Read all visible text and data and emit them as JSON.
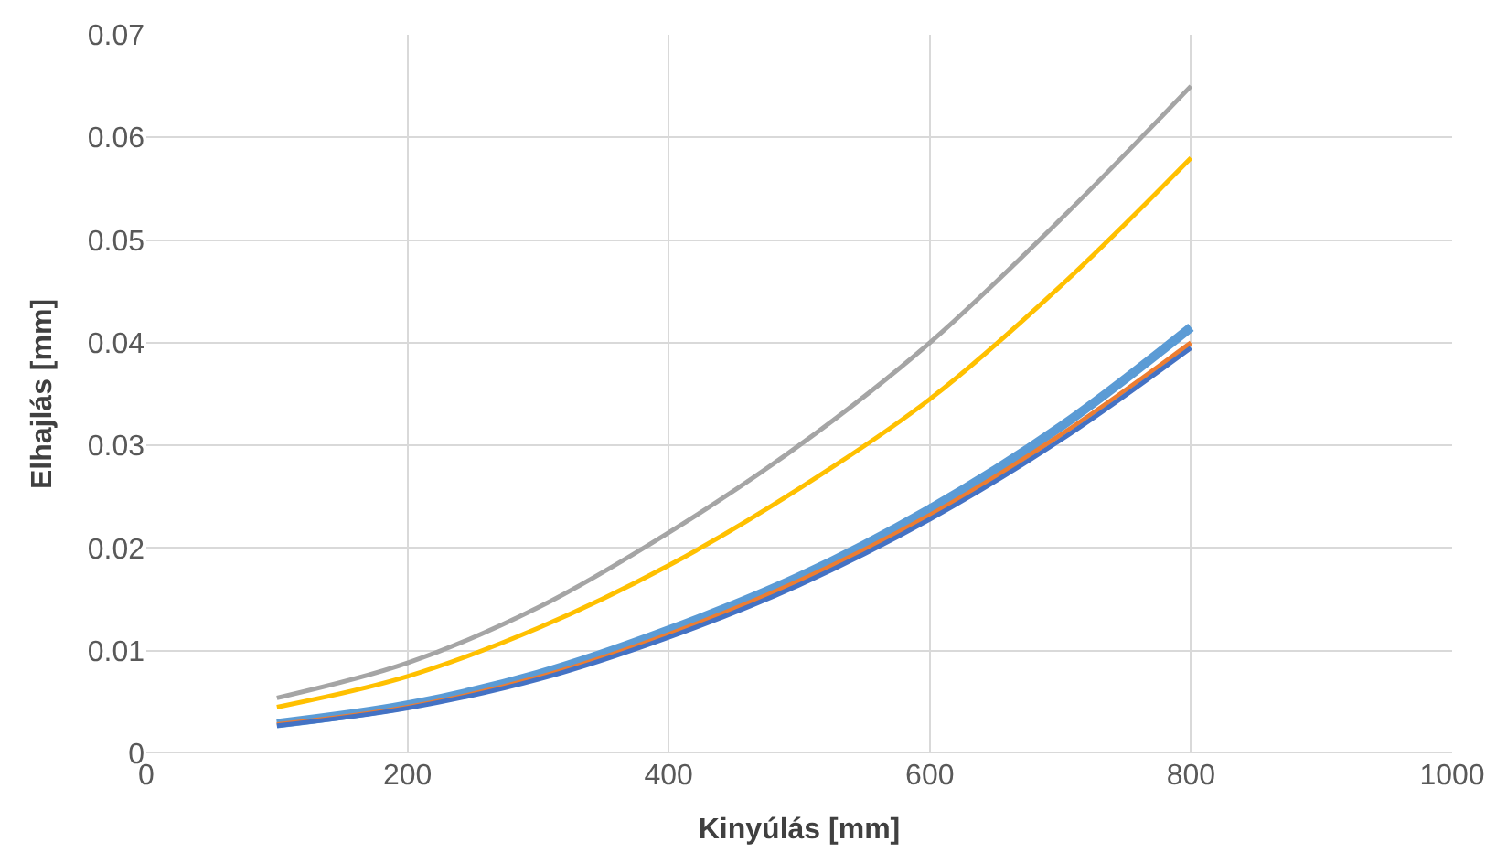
{
  "chart_data": {
    "type": "line",
    "xlabel": "Kinyúlás [mm]",
    "ylabel": "Elhajlás [mm]",
    "x": [
      100,
      200,
      300,
      400,
      500,
      600,
      700,
      800
    ],
    "series": [
      {
        "color": "#5b9bd5",
        "values": [
          0.0029,
          0.0047,
          0.0077,
          0.012,
          0.0172,
          0.0238,
          0.0318,
          0.0415
        ]
      },
      {
        "color": "#ed7d31",
        "values": [
          0.0028,
          0.0045,
          0.0074,
          0.0116,
          0.0168,
          0.0232,
          0.031,
          0.04
        ]
      },
      {
        "color": "#a5a5a5",
        "values": [
          0.0054,
          0.0088,
          0.0142,
          0.0215,
          0.03,
          0.04,
          0.052,
          0.065
        ]
      },
      {
        "color": "#ffc000",
        "values": [
          0.0045,
          0.0075,
          0.0122,
          0.0183,
          0.0258,
          0.0345,
          0.0455,
          0.058
        ]
      },
      {
        "color": "#4472c4",
        "values": [
          0.0027,
          0.0044,
          0.0072,
          0.0113,
          0.0164,
          0.0228,
          0.0305,
          0.0395
        ]
      }
    ],
    "xlim": [
      0,
      1000
    ],
    "xticks": [
      0,
      200,
      400,
      600,
      800,
      1000
    ],
    "ylim": [
      0,
      0.07
    ],
    "yticks": [
      0,
      0.01,
      0.02,
      0.03,
      0.04,
      0.05,
      0.06,
      0.07
    ],
    "grid": true,
    "marker": "none",
    "line_style": "solid"
  }
}
